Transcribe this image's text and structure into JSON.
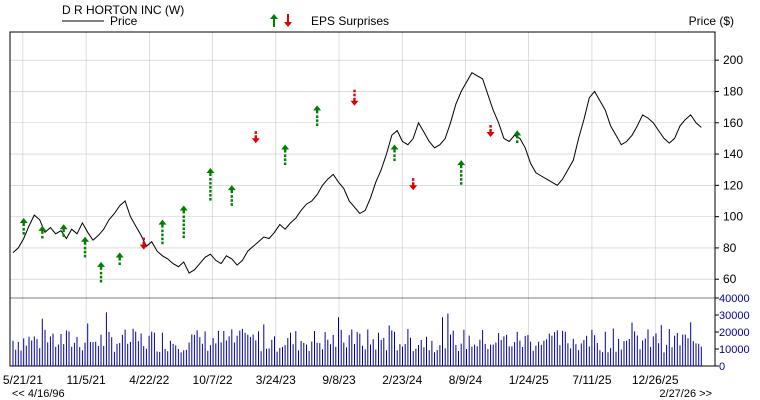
{
  "header": {
    "company": "D R HORTON INC (W)",
    "price_legend": "Price",
    "eps_legend": "EPS Surprises",
    "y_axis_label": "Price ($)"
  },
  "navigation": {
    "back_link": "<< 4/16/96",
    "forward_link": "2/27/26 >>"
  },
  "colors": {
    "price_line": "#000000",
    "volume_bars": "#0000a0",
    "eps_beat": "#008000",
    "eps_miss": "#e00000",
    "grid": "#c8c8c8",
    "frame": "#000000"
  },
  "chart_data": {
    "type": "line",
    "title": "D R HORTON INC (W)",
    "ylabel": "Price ($)",
    "x_tick_labels": [
      "5/21/21",
      "11/5/21",
      "4/22/22",
      "10/7/22",
      "3/24/23",
      "9/8/23",
      "2/23/24",
      "8/9/24",
      "1/24/25",
      "7/11/25",
      "12/26/25"
    ],
    "price_axis": {
      "ticks": [
        60,
        80,
        100,
        120,
        140,
        160,
        180,
        200
      ],
      "ylim": [
        48,
        218
      ]
    },
    "volume_axis": {
      "ticks": [
        0,
        10000,
        20000,
        30000,
        40000
      ],
      "ylim": [
        0,
        40000
      ]
    },
    "grid": true,
    "series": [
      {
        "name": "Price",
        "t": [
          0,
          2,
          4,
          6,
          8,
          10,
          12,
          14,
          16,
          18,
          20,
          22,
          24,
          26,
          28,
          30,
          32,
          34,
          36,
          38,
          40,
          42,
          44,
          46,
          48,
          50,
          52,
          54,
          56,
          58,
          60,
          62,
          64,
          66,
          68,
          70,
          72,
          74,
          76,
          78,
          80,
          82,
          84,
          86,
          88,
          90,
          92,
          94,
          96,
          98,
          100,
          102,
          104,
          106,
          108,
          110,
          112,
          114,
          116,
          118,
          120,
          122,
          124,
          126,
          128,
          130,
          132,
          134,
          136,
          138,
          140,
          142,
          144,
          146,
          148,
          150,
          152,
          154,
          156,
          158,
          160,
          162,
          164,
          166,
          168,
          170,
          172,
          174,
          176,
          178,
          180,
          182,
          184,
          186,
          188,
          190,
          192,
          194,
          196,
          198,
          200,
          202,
          204,
          206,
          208,
          210,
          212,
          214,
          216,
          218,
          220,
          222,
          224,
          226,
          228,
          230,
          232,
          234,
          236,
          238,
          240,
          242,
          244,
          246,
          248,
          250,
          252,
          254,
          256,
          258
        ],
        "price": [
          77,
          80,
          86,
          94,
          101,
          98,
          90,
          93,
          89,
          91,
          86,
          92,
          89,
          96,
          90,
          85,
          88,
          92,
          98,
          102,
          107,
          110,
          100,
          94,
          88,
          81,
          84,
          78,
          75,
          73,
          70,
          68,
          71,
          64,
          66,
          70,
          74,
          76,
          72,
          70,
          75,
          73,
          69,
          72,
          78,
          81,
          84,
          87,
          86,
          90,
          95,
          92,
          96,
          99,
          104,
          108,
          110,
          114,
          120,
          124,
          127,
          122,
          118,
          110,
          106,
          102,
          104,
          112,
          122,
          130,
          140,
          152,
          155,
          148,
          146,
          150,
          160,
          154,
          148,
          144,
          146,
          150,
          160,
          172,
          180,
          186,
          192,
          190,
          188,
          178,
          168,
          160,
          150,
          148,
          152,
          150,
          144,
          134,
          128,
          126,
          124,
          122,
          120,
          124,
          130,
          136,
          150,
          162,
          176,
          180,
          174,
          168,
          158,
          152,
          146,
          148,
          152,
          158,
          165,
          163,
          160,
          155,
          150,
          147,
          150,
          158,
          162,
          165,
          160,
          157
        ]
      }
    ],
    "eps_surprises": [
      {
        "t": 4,
        "type": "beat",
        "price": 94,
        "strength": 2
      },
      {
        "t": 11,
        "type": "beat",
        "price": 89,
        "strength": 1
      },
      {
        "t": 19,
        "type": "beat",
        "price": 90,
        "strength": 1
      },
      {
        "t": 27,
        "type": "beat",
        "price": 82,
        "strength": 3
      },
      {
        "t": 33,
        "type": "beat",
        "price": 66,
        "strength": 3
      },
      {
        "t": 40,
        "type": "beat",
        "price": 72,
        "strength": 1
      },
      {
        "t": 49,
        "type": "miss",
        "price": 84,
        "strength": 1
      },
      {
        "t": 56,
        "type": "beat",
        "price": 93,
        "strength": 4
      },
      {
        "t": 64,
        "type": "beat",
        "price": 102,
        "strength": 6
      },
      {
        "t": 74,
        "type": "beat",
        "price": 126,
        "strength": 6
      },
      {
        "t": 82,
        "type": "beat",
        "price": 115,
        "strength": 3
      },
      {
        "t": 91,
        "type": "miss",
        "price": 152,
        "strength": 1
      },
      {
        "t": 102,
        "type": "beat",
        "price": 141,
        "strength": 3
      },
      {
        "t": 114,
        "type": "beat",
        "price": 166,
        "strength": 3
      },
      {
        "t": 128,
        "type": "miss",
        "price": 176,
        "strength": 2
      },
      {
        "t": 143,
        "type": "beat",
        "price": 141,
        "strength": 2
      },
      {
        "t": 150,
        "type": "miss",
        "price": 122,
        "strength": 1
      },
      {
        "t": 168,
        "type": "beat",
        "price": 131,
        "strength": 4
      },
      {
        "t": 179,
        "type": "miss",
        "price": 156,
        "strength": 1
      },
      {
        "t": 189,
        "type": "beat",
        "price": 150,
        "strength": 1
      }
    ],
    "volume_note": "weekly volume bars, roughly 10000–30000 range"
  }
}
